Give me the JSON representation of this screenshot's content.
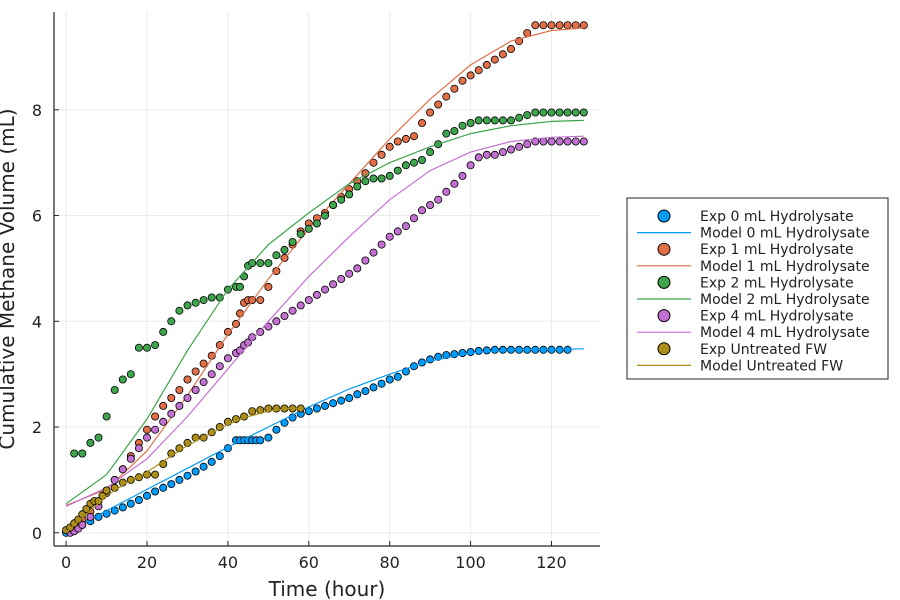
{
  "chart_data": {
    "type": "scatter",
    "xlabel": "Time (hour)",
    "ylabel": "Cumulative Methane Volume (mL)",
    "xlim": [
      -3,
      132
    ],
    "ylim": [
      -0.25,
      9.85
    ],
    "xticks": [
      0,
      20,
      40,
      60,
      80,
      100,
      120
    ],
    "yticks": [
      0,
      2,
      4,
      6,
      8
    ],
    "grid": true,
    "legend_position": "right",
    "series": [
      {
        "name": "Exp 0 mL Hydrolysate",
        "kind": "points",
        "color": "#009af9",
        "x": [
          0,
          1,
          2,
          3,
          4,
          6,
          8,
          10,
          12,
          14,
          16,
          18,
          20,
          22,
          24,
          26,
          28,
          30,
          32,
          34,
          36,
          38,
          40,
          42,
          43,
          44,
          45,
          46,
          47,
          48,
          50,
          52,
          54,
          56,
          58,
          60,
          62,
          64,
          66,
          68,
          70,
          72,
          74,
          76,
          78,
          80,
          82,
          84,
          86,
          88,
          90,
          92,
          94,
          96,
          98,
          100,
          102,
          104,
          106,
          108,
          110,
          112,
          114,
          116,
          118,
          120,
          122,
          124
        ],
        "y": [
          0.0,
          0.02,
          0.05,
          0.1,
          0.15,
          0.22,
          0.3,
          0.36,
          0.42,
          0.48,
          0.55,
          0.62,
          0.7,
          0.78,
          0.85,
          0.92,
          1.0,
          1.08,
          1.16,
          1.25,
          1.34,
          1.45,
          1.6,
          1.75,
          1.75,
          1.75,
          1.75,
          1.75,
          1.75,
          1.75,
          1.8,
          1.95,
          2.08,
          2.18,
          2.25,
          2.3,
          2.35,
          2.4,
          2.45,
          2.5,
          2.55,
          2.62,
          2.68,
          2.75,
          2.82,
          2.9,
          2.95,
          3.05,
          3.15,
          3.22,
          3.28,
          3.33,
          3.36,
          3.38,
          3.4,
          3.42,
          3.44,
          3.45,
          3.46,
          3.46,
          3.46,
          3.46,
          3.46,
          3.46,
          3.46,
          3.46,
          3.46,
          3.46
        ]
      },
      {
        "name": "Model 0 mL Hydrolysate",
        "kind": "line",
        "color": "#009af9",
        "x": [
          0,
          10,
          20,
          30,
          40,
          50,
          60,
          70,
          80,
          90,
          100,
          110,
          120,
          128
        ],
        "y": [
          0.0,
          0.42,
          0.82,
          1.22,
          1.62,
          2.0,
          2.38,
          2.72,
          3.0,
          3.25,
          3.4,
          3.46,
          3.47,
          3.48
        ]
      },
      {
        "name": "Exp 1 mL Hydrolysate",
        "kind": "points",
        "color": "#e26f46",
        "x": [
          1,
          2,
          3,
          4,
          6,
          8,
          10,
          12,
          14,
          16,
          18,
          20,
          22,
          24,
          26,
          28,
          30,
          32,
          34,
          36,
          38,
          40,
          42,
          43,
          44,
          45,
          46,
          48,
          50,
          52,
          54,
          56,
          58,
          60,
          62,
          64,
          66,
          68,
          70,
          72,
          74,
          76,
          78,
          80,
          82,
          84,
          86,
          88,
          90,
          92,
          94,
          96,
          98,
          100,
          102,
          104,
          106,
          108,
          110,
          112,
          114,
          116,
          118,
          120,
          122,
          124,
          126,
          128
        ],
        "y": [
          0.05,
          0.1,
          0.15,
          0.25,
          0.4,
          0.6,
          0.8,
          1.0,
          1.2,
          1.45,
          1.7,
          1.95,
          2.2,
          2.4,
          2.55,
          2.7,
          2.9,
          3.05,
          3.2,
          3.35,
          3.55,
          3.8,
          3.95,
          4.15,
          4.35,
          4.4,
          4.4,
          4.4,
          4.65,
          4.95,
          5.2,
          5.45,
          5.7,
          5.85,
          5.95,
          6.05,
          6.2,
          6.35,
          6.5,
          6.65,
          6.8,
          7.0,
          7.15,
          7.3,
          7.4,
          7.45,
          7.5,
          7.75,
          7.95,
          8.1,
          8.25,
          8.4,
          8.55,
          8.65,
          8.75,
          8.85,
          8.95,
          9.05,
          9.15,
          9.3,
          9.45,
          9.6,
          9.6,
          9.6,
          9.6,
          9.6,
          9.6,
          9.6
        ]
      },
      {
        "name": "Model 1 mL Hydrolysate",
        "kind": "line",
        "color": "#e26f46",
        "x": [
          0,
          10,
          20,
          30,
          40,
          50,
          60,
          70,
          80,
          90,
          100,
          110,
          120,
          128
        ],
        "y": [
          0.52,
          0.82,
          1.55,
          2.6,
          3.75,
          4.8,
          5.75,
          6.6,
          7.45,
          8.2,
          8.85,
          9.3,
          9.5,
          9.55
        ]
      },
      {
        "name": "Exp 2 mL Hydrolysate",
        "kind": "points",
        "color": "#3ea44e",
        "x": [
          2,
          4,
          6,
          8,
          10,
          12,
          14,
          16,
          18,
          20,
          22,
          24,
          26,
          28,
          30,
          32,
          34,
          36,
          38,
          40,
          42,
          43,
          44,
          45,
          46,
          48,
          50,
          52,
          54,
          56,
          58,
          60,
          62,
          64,
          66,
          68,
          70,
          72,
          74,
          76,
          78,
          80,
          82,
          84,
          86,
          88,
          90,
          92,
          94,
          96,
          98,
          100,
          102,
          104,
          106,
          108,
          110,
          112,
          114,
          116,
          118,
          120,
          122,
          124,
          126,
          128
        ],
        "y": [
          1.5,
          1.5,
          1.7,
          1.8,
          2.2,
          2.7,
          2.9,
          3.0,
          3.5,
          3.5,
          3.55,
          3.8,
          4.0,
          4.2,
          4.3,
          4.35,
          4.4,
          4.45,
          4.45,
          4.6,
          4.65,
          4.65,
          4.85,
          5.05,
          5.1,
          5.1,
          5.1,
          5.25,
          5.35,
          5.5,
          5.65,
          5.75,
          5.85,
          6.0,
          6.2,
          6.3,
          6.4,
          6.55,
          6.65,
          6.7,
          6.7,
          6.75,
          6.85,
          6.95,
          7.0,
          7.05,
          7.2,
          7.35,
          7.55,
          7.6,
          7.7,
          7.75,
          7.8,
          7.8,
          7.8,
          7.8,
          7.8,
          7.85,
          7.9,
          7.95,
          7.95,
          7.95,
          7.95,
          7.95,
          7.95,
          7.95
        ]
      },
      {
        "name": "Model 2 mL Hydrolysate",
        "kind": "line",
        "color": "#3ea44e",
        "x": [
          0,
          10,
          20,
          30,
          40,
          50,
          60,
          70,
          80,
          90,
          100,
          110,
          120,
          128
        ],
        "y": [
          0.55,
          1.1,
          2.15,
          3.45,
          4.6,
          5.45,
          6.05,
          6.6,
          7.0,
          7.3,
          7.55,
          7.7,
          7.78,
          7.8
        ]
      },
      {
        "name": "Exp 4 mL Hydrolysate",
        "kind": "points",
        "color": "#c271d2",
        "x": [
          1,
          2,
          3,
          4,
          6,
          8,
          10,
          12,
          14,
          16,
          18,
          20,
          22,
          24,
          26,
          28,
          30,
          32,
          34,
          36,
          38,
          40,
          42,
          43,
          44,
          45,
          46,
          48,
          50,
          52,
          54,
          56,
          58,
          60,
          62,
          64,
          66,
          68,
          70,
          72,
          74,
          76,
          78,
          80,
          82,
          84,
          86,
          88,
          90,
          92,
          94,
          96,
          98,
          100,
          102,
          104,
          106,
          108,
          110,
          112,
          114,
          116,
          118,
          120,
          122,
          124,
          126,
          128
        ],
        "y": [
          0.0,
          0.03,
          0.08,
          0.15,
          0.3,
          0.5,
          0.75,
          1.0,
          1.2,
          1.4,
          1.6,
          1.8,
          1.95,
          2.1,
          2.25,
          2.4,
          2.55,
          2.7,
          2.85,
          3.0,
          3.15,
          3.3,
          3.4,
          3.45,
          3.55,
          3.6,
          3.7,
          3.8,
          3.9,
          4.0,
          4.1,
          4.2,
          4.3,
          4.4,
          4.5,
          4.6,
          4.7,
          4.8,
          4.9,
          5.0,
          5.15,
          5.3,
          5.45,
          5.6,
          5.7,
          5.8,
          5.95,
          6.1,
          6.2,
          6.3,
          6.45,
          6.6,
          6.75,
          6.95,
          7.1,
          7.15,
          7.15,
          7.2,
          7.25,
          7.3,
          7.35,
          7.4,
          7.4,
          7.4,
          7.4,
          7.4,
          7.4,
          7.4
        ]
      },
      {
        "name": "Model 4 mL Hydrolysate",
        "kind": "line",
        "color": "#c271d2",
        "x": [
          0,
          10,
          20,
          30,
          40,
          50,
          60,
          70,
          80,
          90,
          100,
          110,
          120,
          128
        ],
        "y": [
          0.5,
          0.85,
          1.4,
          2.2,
          3.1,
          4.0,
          4.85,
          5.6,
          6.3,
          6.85,
          7.2,
          7.4,
          7.48,
          7.5
        ]
      },
      {
        "name": "Exp Untreated FW",
        "kind": "points",
        "color": "#ac8e18",
        "x": [
          0,
          1,
          2,
          3,
          4,
          5,
          6,
          7,
          8,
          9,
          10,
          12,
          14,
          16,
          18,
          20,
          22,
          24,
          26,
          28,
          30,
          32,
          34,
          36,
          38,
          40,
          42,
          44,
          46,
          48,
          50,
          52,
          54,
          56,
          58
        ],
        "y": [
          0.05,
          0.1,
          0.18,
          0.25,
          0.35,
          0.45,
          0.55,
          0.6,
          0.6,
          0.7,
          0.8,
          0.85,
          0.95,
          1.0,
          1.05,
          1.1,
          1.1,
          1.3,
          1.5,
          1.6,
          1.7,
          1.8,
          1.8,
          1.9,
          2.0,
          2.1,
          2.15,
          2.2,
          2.3,
          2.32,
          2.35,
          2.35,
          2.35,
          2.35,
          2.35
        ]
      },
      {
        "name": "Model Untreated FW",
        "kind": "line",
        "color": "#ac8e18",
        "x": [
          0,
          5,
          10,
          15,
          20,
          25,
          30,
          35,
          40,
          45,
          50,
          55,
          58
        ],
        "y": [
          0.0,
          0.35,
          0.7,
          0.95,
          1.15,
          1.4,
          1.65,
          1.85,
          2.05,
          2.2,
          2.3,
          2.35,
          2.35
        ]
      }
    ]
  }
}
